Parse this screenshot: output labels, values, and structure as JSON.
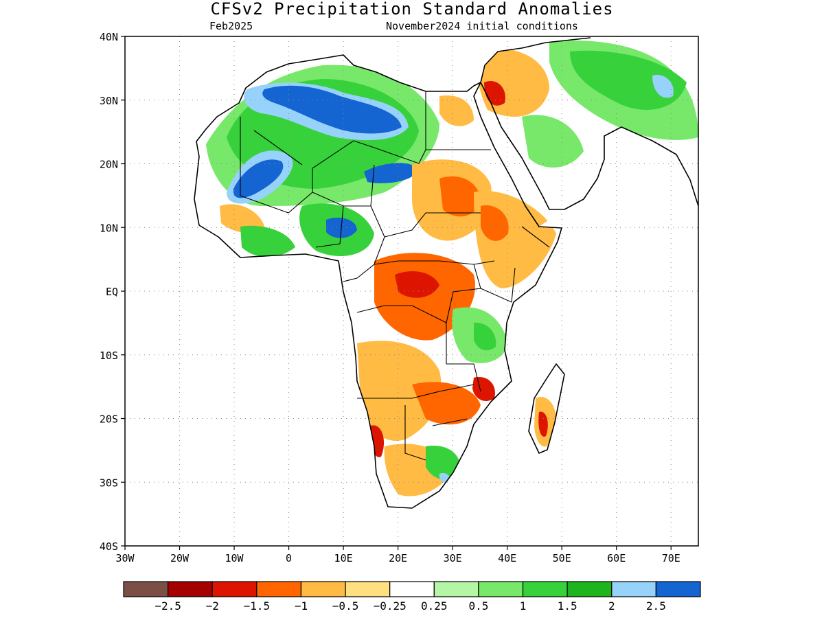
{
  "header": {
    "title": "CFSv2 Precipitation Standard Anomalies",
    "valid_month": "Feb2025",
    "init_conditions": "November2024 initial conditions"
  },
  "axes": {
    "lat_labels": [
      "40N",
      "30N",
      "20N",
      "10N",
      "EQ",
      "10S",
      "20S",
      "30S",
      "40S"
    ],
    "lon_labels": [
      "30W",
      "20W",
      "10W",
      "0",
      "10E",
      "20E",
      "30E",
      "40E",
      "50E",
      "60E",
      "70E"
    ],
    "lat_range": [
      -40,
      40
    ],
    "lon_range": [
      -30,
      75
    ],
    "grid": "dotted"
  },
  "colorbar": {
    "colors": [
      "#7b4f45",
      "#a50000",
      "#dd1500",
      "#ff6600",
      "#ffbb44",
      "#ffe080",
      "#ffffff",
      "#b4f5a6",
      "#78e86a",
      "#37d23b",
      "#1eb41e",
      "#96d2fa",
      "#1464d2"
    ],
    "tick_labels": [
      "−2.5",
      "−2",
      "−1.5",
      "−1",
      "−0.5",
      "−0.25",
      "0.25",
      "0.5",
      "1",
      "1.5",
      "2",
      "2.5"
    ]
  }
}
